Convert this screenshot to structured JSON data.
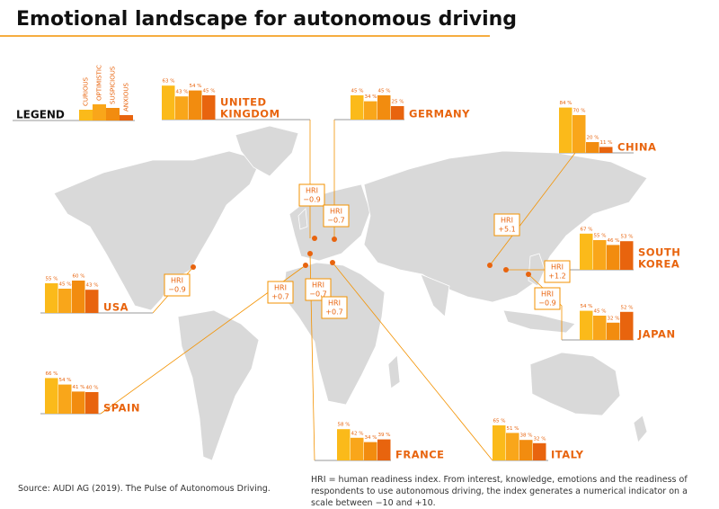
{
  "title": "Emotional landscape for autonomous driving",
  "legend": {
    "title": "LEGEND",
    "series": [
      {
        "name": "CURIOUS",
        "color": "#fbba1a"
      },
      {
        "name": "OPTIMISTIC",
        "color": "#f9a61a"
      },
      {
        "name": "SUSPICIOUS",
        "color": "#f28c0f"
      },
      {
        "name": "ANXIOUS",
        "color": "#e8640e"
      }
    ]
  },
  "hri_label": "HRI",
  "chart_data": [
    {
      "type": "bar",
      "title": [
        "UNITED",
        "KINGDOM"
      ],
      "values": [
        63,
        43,
        54,
        45
      ],
      "value_labels": [
        "63 %",
        "43 %",
        "54 %",
        "45 %"
      ],
      "hri": "−0.9"
    },
    {
      "type": "bar",
      "title": [
        "GERMANY"
      ],
      "values": [
        45,
        34,
        45,
        25
      ],
      "value_labels": [
        "45 %",
        "34 %",
        "45 %",
        "25 %"
      ],
      "hri": "−0.7"
    },
    {
      "type": "bar",
      "title": [
        "CHINA"
      ],
      "values": [
        84,
        70,
        20,
        11
      ],
      "value_labels": [
        "84 %",
        "70 %",
        "20 %",
        "11 %"
      ],
      "hri": "+5.1"
    },
    {
      "type": "bar",
      "title": [
        "SOUTH",
        "KOREA"
      ],
      "values": [
        67,
        55,
        46,
        53
      ],
      "value_labels": [
        "67 %",
        "55 %",
        "46 %",
        "53 %"
      ],
      "hri": "+1.2"
    },
    {
      "type": "bar",
      "title": [
        "JAPAN"
      ],
      "values": [
        54,
        45,
        32,
        52
      ],
      "value_labels": [
        "54 %",
        "45 %",
        "32 %",
        "52 %"
      ],
      "hri": "−0.9"
    },
    {
      "type": "bar",
      "title": [
        "USA"
      ],
      "values": [
        55,
        45,
        60,
        43
      ],
      "value_labels": [
        "55 %",
        "45 %",
        "60 %",
        "43 %"
      ],
      "hri": "−0.9"
    },
    {
      "type": "bar",
      "title": [
        "SPAIN"
      ],
      "values": [
        66,
        54,
        41,
        40
      ],
      "value_labels": [
        "66 %",
        "54 %",
        "41 %",
        "40 %"
      ],
      "hri": "+0.7"
    },
    {
      "type": "bar",
      "title": [
        "FRANCE"
      ],
      "values": [
        58,
        42,
        34,
        39
      ],
      "value_labels": [
        "58 %",
        "42 %",
        "34 %",
        "39 %"
      ],
      "hri": "−0.7"
    },
    {
      "type": "bar",
      "title": [
        "ITALY"
      ],
      "values": [
        65,
        51,
        38,
        32
      ],
      "value_labels": [
        "65 %",
        "51 %",
        "38 %",
        "32 %"
      ],
      "hri": "+0.7"
    }
  ],
  "source": "Source: AUDI AG (2019). The Pulse of Autonomous Driving.",
  "note": "HRI = human readiness index. From interest, knowledge, emotions and the readiness of respondents to use autonomous driving, the index generates a numerical indicator on a scale between −10 and +10."
}
